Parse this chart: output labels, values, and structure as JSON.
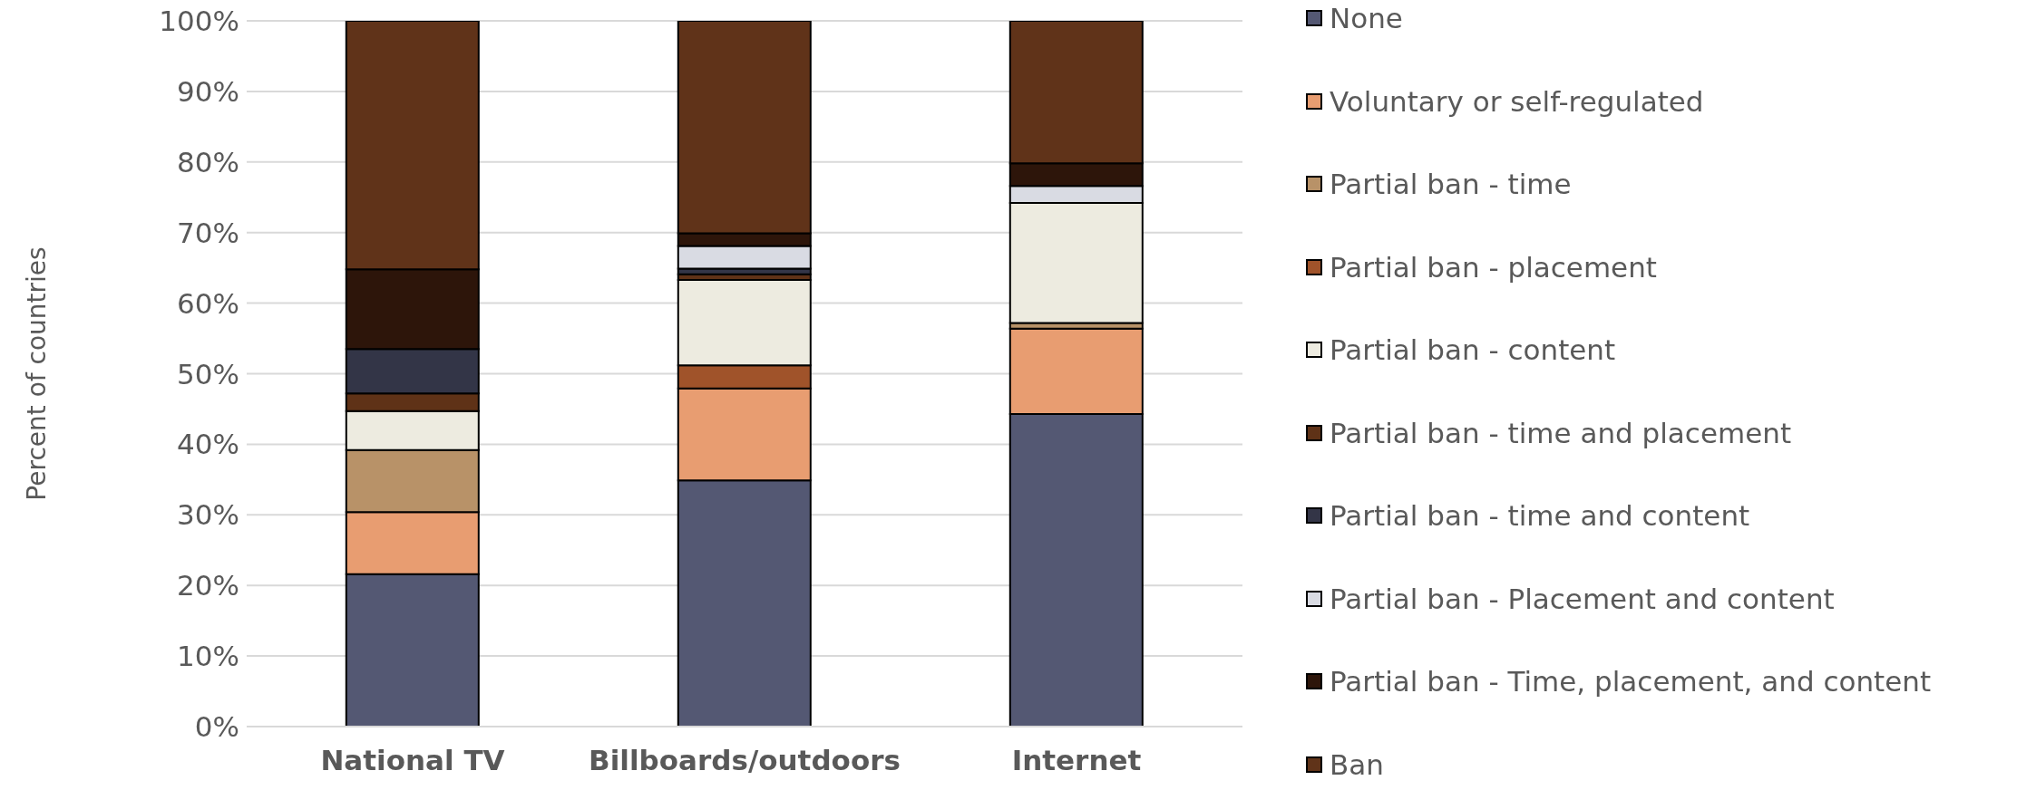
{
  "chart_data": {
    "type": "bar",
    "stacked": true,
    "ylabel": "Percent of countries",
    "categories": [
      "National TV",
      "Billboards/outdoors",
      "Internet"
    ],
    "ylim": [
      0,
      100
    ],
    "yticks": [
      {
        "value": 0,
        "label": "0%"
      },
      {
        "value": 10,
        "label": "10%"
      },
      {
        "value": 20,
        "label": "20%"
      },
      {
        "value": 30,
        "label": "30%"
      },
      {
        "value": 40,
        "label": "40%"
      },
      {
        "value": 50,
        "label": "50%"
      },
      {
        "value": 60,
        "label": "60%"
      },
      {
        "value": 70,
        "label": "70%"
      },
      {
        "value": 80,
        "label": "80%"
      },
      {
        "value": 90,
        "label": "90%"
      },
      {
        "value": 100,
        "label": "100%"
      }
    ],
    "grid": "y",
    "legend": "right",
    "series": [
      {
        "name": "None",
        "color": "#545873",
        "values": [
          21.6,
          34.9,
          44.3
        ]
      },
      {
        "name": "Voluntary or self-regulated",
        "color": "#e89d71",
        "values": [
          8.8,
          13.0,
          12.1
        ]
      },
      {
        "name": "Partial ban - time",
        "color": "#b89268",
        "values": [
          8.8,
          0,
          0.8
        ]
      },
      {
        "name": "Partial ban - placement",
        "color": "#a0532a",
        "values": [
          0,
          3.3,
          0
        ]
      },
      {
        "name": "Partial ban - content",
        "color": "#edebe0",
        "values": [
          5.5,
          12.1,
          17.0
        ]
      },
      {
        "name": "Partial ban - time and placement",
        "color": "#5f3217",
        "values": [
          2.5,
          0.8,
          0
        ]
      },
      {
        "name": "Partial ban - time and content",
        "color": "#333547",
        "values": [
          6.3,
          0.8,
          0
        ]
      },
      {
        "name": "Partial ban - Placement and content",
        "color": "#d9dbe3",
        "values": [
          0,
          3.2,
          2.4
        ]
      },
      {
        "name": "Partial ban - Time, placement, and content",
        "color": "#2d150a",
        "values": [
          11.3,
          1.8,
          3.2
        ]
      },
      {
        "name": "Ban",
        "color": "#603319",
        "values": [
          35.2,
          30.1,
          20.2
        ]
      }
    ]
  }
}
